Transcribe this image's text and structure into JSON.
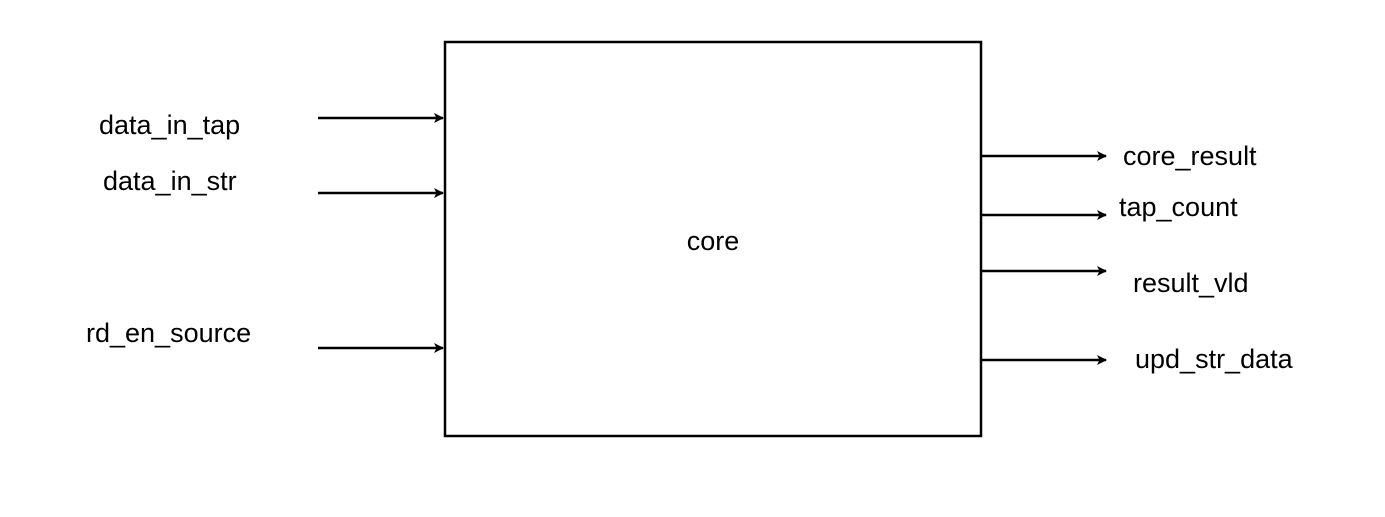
{
  "block": {
    "label": "core"
  },
  "inputs": [
    {
      "label": "data_in_tap"
    },
    {
      "label": "data_in_str"
    },
    {
      "label": "rd_en_source"
    }
  ],
  "outputs": [
    {
      "label": "core_result"
    },
    {
      "label": "tap_count"
    },
    {
      "label": "result_vld"
    },
    {
      "label": "upd_str_data"
    }
  ],
  "colors": {
    "stroke": "#000000",
    "background": "#ffffff"
  }
}
